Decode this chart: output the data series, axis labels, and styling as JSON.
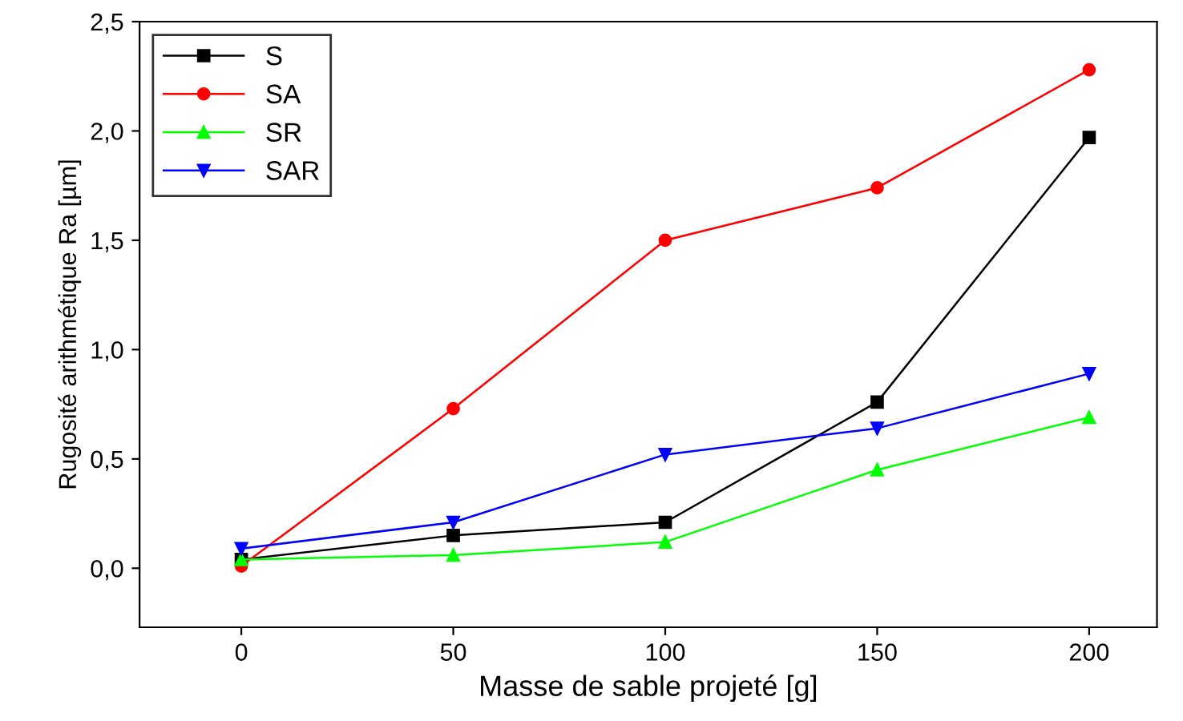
{
  "chart_data": {
    "type": "line",
    "xlabel": "Masse de sable projeté [g]",
    "ylabel": "Rugosité arithmétique Ra [µm]",
    "x": [
      0,
      50,
      100,
      150,
      200
    ],
    "series": [
      {
        "name": "S",
        "color": "#000000",
        "marker": "square",
        "values": [
          0.04,
          0.15,
          0.21,
          0.76,
          1.97
        ]
      },
      {
        "name": "SA",
        "color": "#ff0000",
        "marker": "circle",
        "values": [
          0.01,
          0.73,
          1.5,
          1.74,
          2.28
        ]
      },
      {
        "name": "SR",
        "color": "#00ff00",
        "marker": "triangle",
        "values": [
          0.04,
          0.06,
          0.12,
          0.45,
          0.69
        ]
      },
      {
        "name": "SAR",
        "color": "#0000ff",
        "marker": "triangle_down",
        "values": [
          0.09,
          0.21,
          0.52,
          0.64,
          0.89
        ]
      }
    ],
    "xlim": [
      -24,
      216
    ],
    "xticks": [
      0,
      50,
      100,
      150,
      200
    ],
    "ylim": [
      -0.27,
      2.5
    ],
    "yticks": [
      {
        "value": 0,
        "label": "0,0"
      },
      {
        "value": 0.5,
        "label": "0,5"
      },
      {
        "value": 1,
        "label": "1,0"
      },
      {
        "value": 1.5,
        "label": "1,5"
      },
      {
        "value": 2,
        "label": "2,0"
      },
      {
        "value": 2.5,
        "label": "2,5"
      }
    ],
    "legend": "top left",
    "grid": false
  }
}
